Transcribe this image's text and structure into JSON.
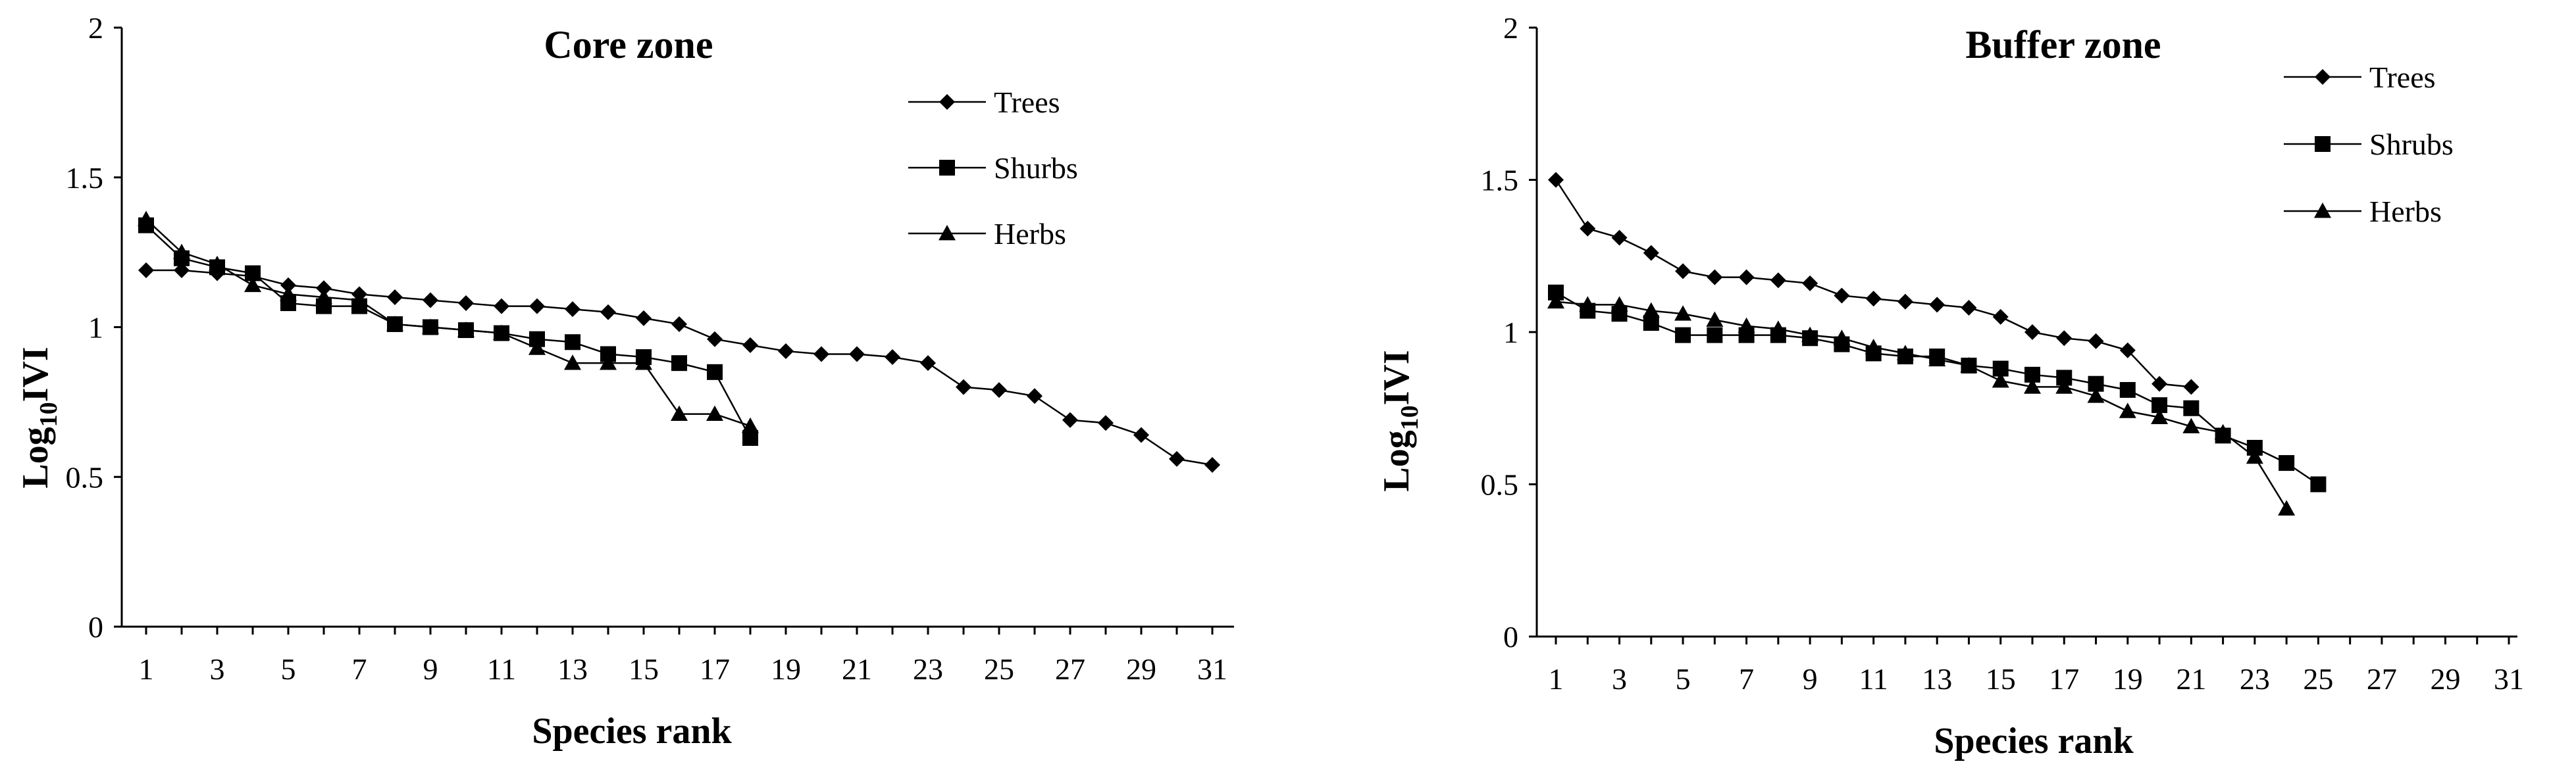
{
  "chart_data": [
    {
      "type": "line",
      "title": "Core zone",
      "xlabel": "Species rank",
      "ylabel_main": "Log",
      "ylabel_sub": "10",
      "ylabel_tail": "IVI",
      "xlim": [
        1,
        31
      ],
      "ylim": [
        0,
        2
      ],
      "xticks": [
        1,
        3,
        5,
        7,
        9,
        11,
        13,
        15,
        17,
        19,
        21,
        23,
        25,
        27,
        29,
        31
      ],
      "yticks": [
        0,
        0.5,
        1,
        1.5,
        2
      ],
      "ytick_labels": [
        "0",
        "0.5",
        "1",
        "1.5",
        "2"
      ],
      "legend_position": "top-right",
      "series": [
        {
          "name": "Trees",
          "marker": "diamond",
          "x": [
            1,
            2,
            3,
            4,
            5,
            6,
            7,
            8,
            9,
            10,
            11,
            12,
            13,
            14,
            15,
            16,
            17,
            18,
            19,
            20,
            21,
            22,
            23,
            24,
            25,
            26,
            27,
            28,
            29,
            30,
            31
          ],
          "values": [
            1.19,
            1.19,
            1.18,
            1.17,
            1.14,
            1.13,
            1.11,
            1.1,
            1.09,
            1.08,
            1.07,
            1.07,
            1.06,
            1.05,
            1.03,
            1.01,
            0.96,
            0.94,
            0.92,
            0.91,
            0.91,
            0.9,
            0.88,
            0.8,
            0.79,
            0.77,
            0.69,
            0.68,
            0.64,
            0.56,
            0.54
          ]
        },
        {
          "name": "Shurbs",
          "marker": "square",
          "x": [
            1,
            2,
            3,
            4,
            5,
            6,
            7,
            8,
            9,
            10,
            11,
            12,
            13,
            14,
            15,
            16,
            17,
            18
          ],
          "values": [
            1.34,
            1.23,
            1.2,
            1.18,
            1.08,
            1.07,
            1.07,
            1.01,
            1.0,
            0.99,
            0.98,
            0.96,
            0.95,
            0.91,
            0.9,
            0.88,
            0.85,
            0.63
          ]
        },
        {
          "name": "Herbs",
          "marker": "triangle",
          "x": [
            1,
            2,
            3,
            4,
            5,
            6,
            7,
            8,
            9,
            10,
            11,
            12,
            13,
            14,
            15,
            16,
            17,
            18
          ],
          "values": [
            1.36,
            1.25,
            1.21,
            1.14,
            1.11,
            1.1,
            1.09,
            1.01,
            1.0,
            0.99,
            0.98,
            0.93,
            0.88,
            0.88,
            0.88,
            0.71,
            0.71,
            0.67
          ]
        }
      ]
    },
    {
      "type": "line",
      "title": "Buffer zone",
      "xlabel": "Species rank",
      "ylabel_main": "Log",
      "ylabel_sub": "10",
      "ylabel_tail": "IVI",
      "xlim": [
        1,
        31
      ],
      "ylim": [
        0,
        2
      ],
      "xticks": [
        1,
        3,
        5,
        7,
        9,
        11,
        13,
        15,
        17,
        19,
        21,
        23,
        25,
        27,
        29,
        31
      ],
      "yticks": [
        0,
        0.5,
        1,
        1.5,
        2
      ],
      "ytick_labels": [
        "0",
        "0.5",
        "1",
        "1.5",
        "2"
      ],
      "legend_position": "top-right",
      "series": [
        {
          "name": "Trees",
          "marker": "diamond",
          "x": [
            1,
            2,
            3,
            4,
            5,
            6,
            7,
            8,
            9,
            10,
            11,
            12,
            13,
            14,
            15,
            16,
            17,
            18,
            19,
            20,
            21
          ],
          "values": [
            1.5,
            1.34,
            1.31,
            1.26,
            1.2,
            1.18,
            1.18,
            1.17,
            1.16,
            1.12,
            1.11,
            1.1,
            1.09,
            1.08,
            1.05,
            1.0,
            0.98,
            0.97,
            0.94,
            0.83,
            0.82
          ]
        },
        {
          "name": "Shrubs",
          "marker": "square",
          "x": [
            1,
            2,
            3,
            4,
            5,
            6,
            7,
            8,
            9,
            10,
            11,
            12,
            13,
            14,
            15,
            16,
            17,
            18,
            19,
            20,
            21,
            22,
            23,
            24,
            25
          ],
          "values": [
            1.13,
            1.07,
            1.06,
            1.03,
            0.99,
            0.99,
            0.99,
            0.99,
            0.98,
            0.96,
            0.93,
            0.92,
            0.92,
            0.89,
            0.88,
            0.86,
            0.85,
            0.83,
            0.81,
            0.76,
            0.75,
            0.66,
            0.62,
            0.57,
            0.5
          ]
        },
        {
          "name": "Herbs",
          "marker": "triangle",
          "x": [
            1,
            2,
            3,
            4,
            5,
            6,
            7,
            8,
            9,
            10,
            11,
            12,
            13,
            14,
            15,
            16,
            17,
            18,
            19,
            20,
            21,
            22,
            23,
            24
          ],
          "values": [
            1.1,
            1.09,
            1.09,
            1.07,
            1.06,
            1.04,
            1.02,
            1.01,
            0.99,
            0.98,
            0.95,
            0.93,
            0.91,
            0.89,
            0.84,
            0.82,
            0.82,
            0.79,
            0.74,
            0.72,
            0.69,
            0.67,
            0.59,
            0.42
          ]
        }
      ]
    }
  ]
}
